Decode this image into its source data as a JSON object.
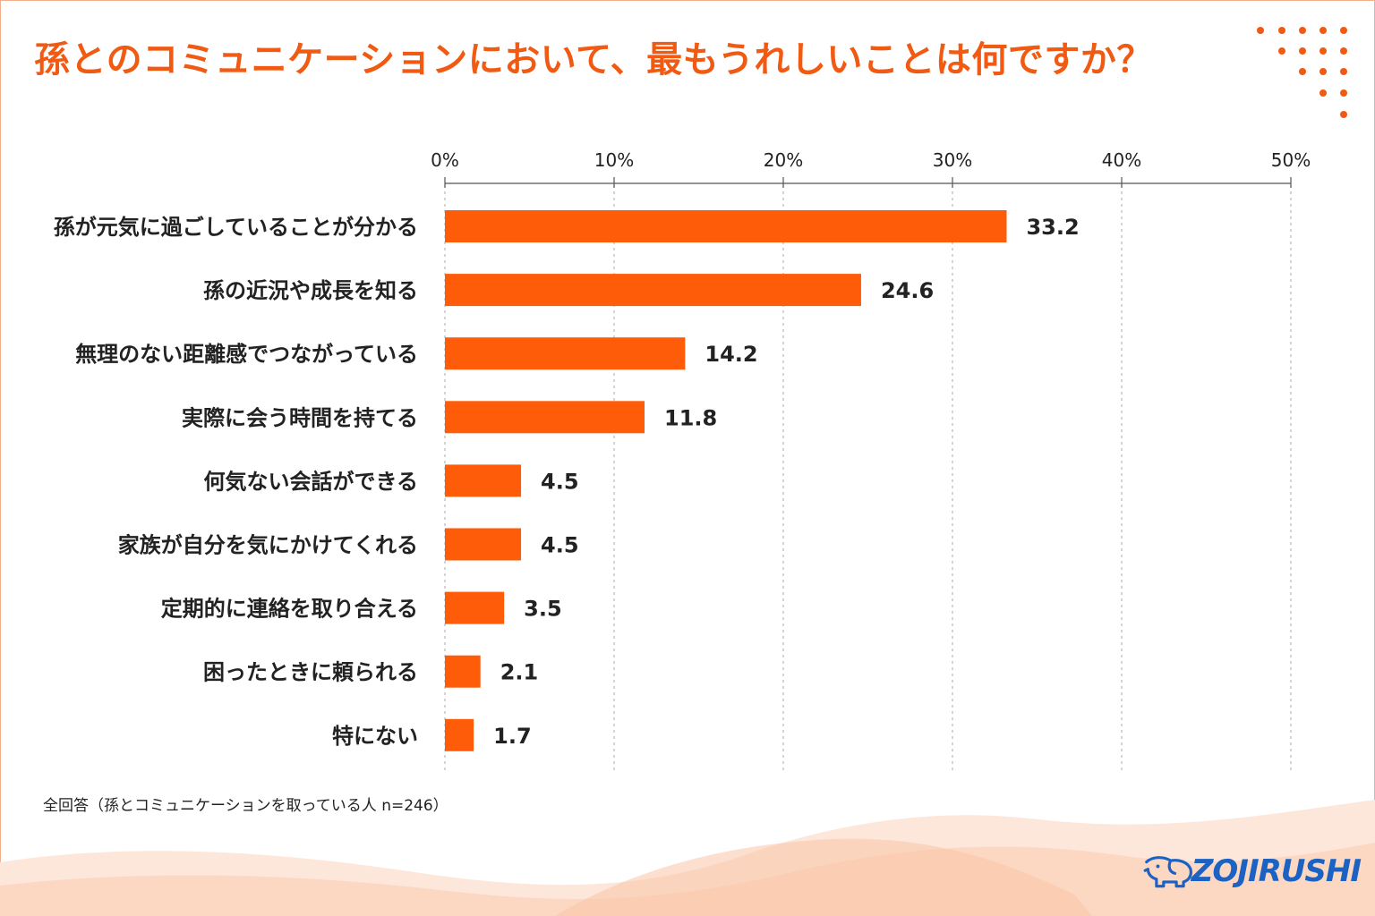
{
  "header": {
    "title": "孫とのコミュニケーションにおいて、最もうれしいことは何ですか？"
  },
  "footnote": "全回答（孫とコミュニケーションを取っている人 n=246）",
  "brand": {
    "name": "ZOJIRUSHI",
    "color": "#1b62c2"
  },
  "colors": {
    "accent": "#f05a12",
    "bar": "#ff5c0a",
    "wave": "#fbd9c6"
  },
  "chart_data": {
    "type": "bar",
    "orientation": "horizontal",
    "categories": [
      "孫が元気に過ごしていることが分かる",
      "孫の近況や成長を知る",
      "無理のない距離感でつながっている",
      "実際に会う時間を持てる",
      "何気ない会話ができる",
      "家族が自分を気にかけてくれる",
      "定期的に連絡を取り合える",
      "困ったときに頼られる",
      "特にない"
    ],
    "values": [
      33.2,
      24.6,
      14.2,
      11.8,
      4.5,
      4.5,
      3.5,
      2.1,
      1.7
    ],
    "value_labels": [
      "33.2",
      "24.6",
      "14.2",
      "11.8",
      "4.5",
      "4.5",
      "3.5",
      "2.1",
      "1.7"
    ],
    "xlim": [
      0,
      50
    ],
    "ticks": [
      0,
      10,
      20,
      30,
      40,
      50
    ],
    "tick_labels": [
      "0%",
      "10%",
      "20%",
      "30%",
      "40%",
      "50%"
    ],
    "axis_position": "top",
    "grid": true,
    "legend": "none"
  }
}
